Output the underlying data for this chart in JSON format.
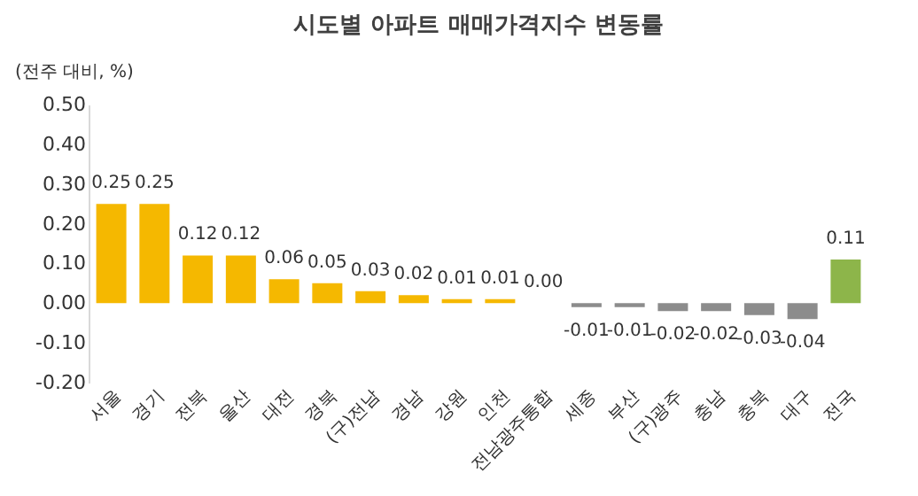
{
  "chart_data": {
    "type": "bar",
    "title": "시도별 아파트 매매가격지수 변동률",
    "ylabel": "(전주 대비, %)",
    "categories": [
      "서울",
      "경기",
      "전북",
      "울산",
      "대전",
      "경북",
      "(구)전남",
      "경남",
      "강원",
      "인천",
      "전남광주통합",
      "세종",
      "부산",
      "(구)광주",
      "충남",
      "충북",
      "대구",
      "전국"
    ],
    "values": [
      0.25,
      0.25,
      0.12,
      0.12,
      0.06,
      0.05,
      0.03,
      0.02,
      0.01,
      0.01,
      0.0,
      -0.01,
      -0.01,
      -0.02,
      -0.02,
      -0.03,
      -0.04,
      0.11
    ],
    "colors": [
      "#f5b800",
      "#f5b800",
      "#f5b800",
      "#f5b800",
      "#f5b800",
      "#f5b800",
      "#f5b800",
      "#f5b800",
      "#f5b800",
      "#f5b800",
      "#f5b800",
      "#8c8c8c",
      "#8c8c8c",
      "#8c8c8c",
      "#8c8c8c",
      "#8c8c8c",
      "#8c8c8c",
      "#8db54a"
    ],
    "value_labels": [
      "0.25",
      "0.25",
      "0.12",
      "0.12",
      "0.06",
      "0.05",
      "0.03",
      "0.02",
      "0.01",
      "0.01",
      "0.00",
      "-0.01",
      "-0.01",
      "-0.02",
      "-0.02",
      "-0.03",
      "-0.04",
      "0.11"
    ],
    "ylim": [
      -0.2,
      0.5
    ],
    "yticks": [
      {
        "value": -0.2,
        "label": "-0.20"
      },
      {
        "value": -0.1,
        "label": "-0.10"
      },
      {
        "value": 0,
        "label": "0.00"
      },
      {
        "value": 0.1,
        "label": "0.10"
      },
      {
        "value": 0.2,
        "label": "0.20"
      },
      {
        "value": 0.3,
        "label": "0.30"
      },
      {
        "value": 0.4,
        "label": "0.40"
      },
      {
        "value": 0.5,
        "label": "0.50"
      }
    ],
    "grid": false
  }
}
